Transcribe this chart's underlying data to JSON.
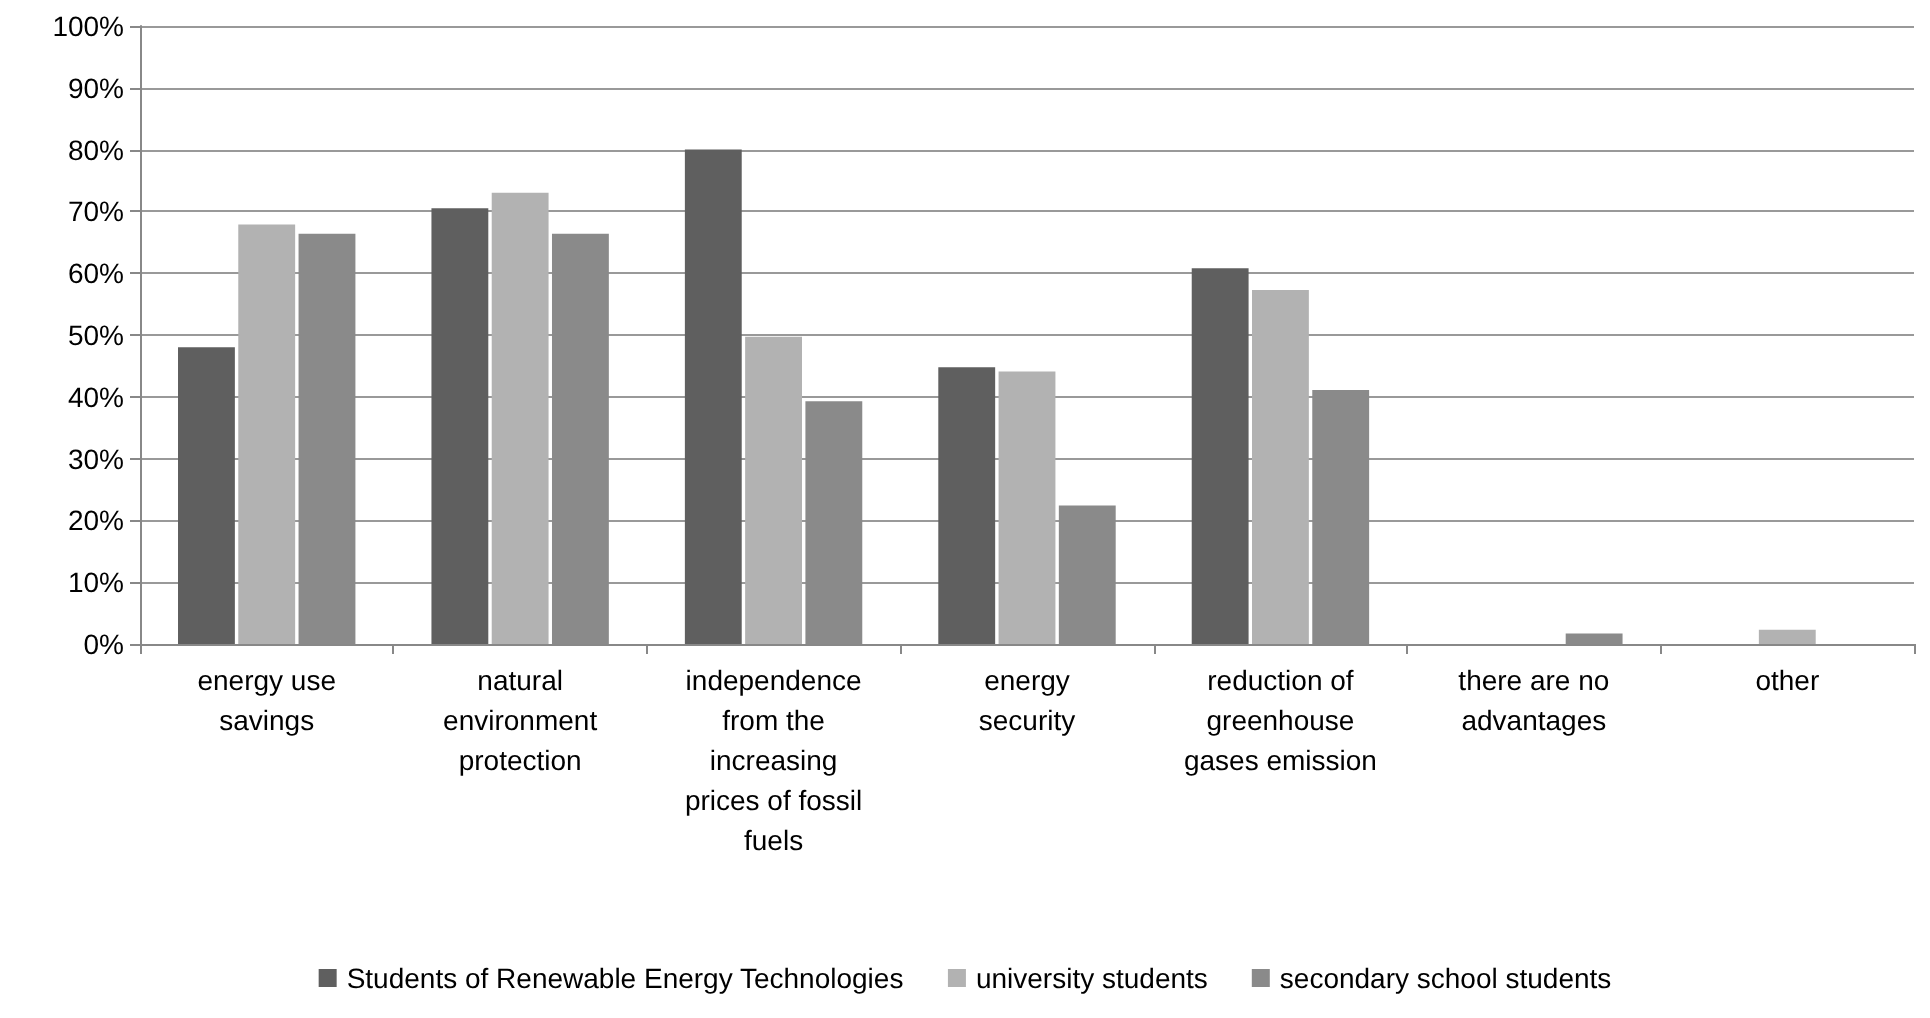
{
  "chart_data": {
    "type": "bar",
    "categories": [
      "energy use\nsavings",
      "natural\nenvironment\nprotection",
      "independence\nfrom the\nincreasing\nprices of fossil\nfuels",
      "energy\nsecurity",
      "reduction of\ngreenhouse\ngases emission",
      "there are no\nadvantages",
      "other"
    ],
    "series": [
      {
        "name": "Students of Renewable Energy Technologies",
        "color": "#5f5f5f",
        "values": [
          48,
          70.5,
          80,
          44.8,
          60.8,
          0,
          0
        ]
      },
      {
        "name": "university students",
        "color": "#b2b2b2",
        "values": [
          67.9,
          73,
          49.7,
          44.1,
          57.3,
          0,
          2.3
        ]
      },
      {
        "name": "secondary school students",
        "color": "#8a8a8a",
        "values": [
          66.4,
          66.4,
          39.3,
          22.4,
          41.1,
          1.7,
          0
        ]
      }
    ],
    "ylim": [
      0,
      100
    ],
    "yticks": [
      {
        "value": 0,
        "label": "0%"
      },
      {
        "value": 10,
        "label": "10%"
      },
      {
        "value": 20,
        "label": "20%"
      },
      {
        "value": 30,
        "label": "30%"
      },
      {
        "value": 40,
        "label": "40%"
      },
      {
        "value": 50,
        "label": "50%"
      },
      {
        "value": 60,
        "label": "60%"
      },
      {
        "value": 70,
        "label": "70%"
      },
      {
        "value": 80,
        "label": "80%"
      },
      {
        "value": 90,
        "label": "90%"
      },
      {
        "value": 100,
        "label": "100%"
      }
    ],
    "grid": "y",
    "legend": "bottom"
  }
}
